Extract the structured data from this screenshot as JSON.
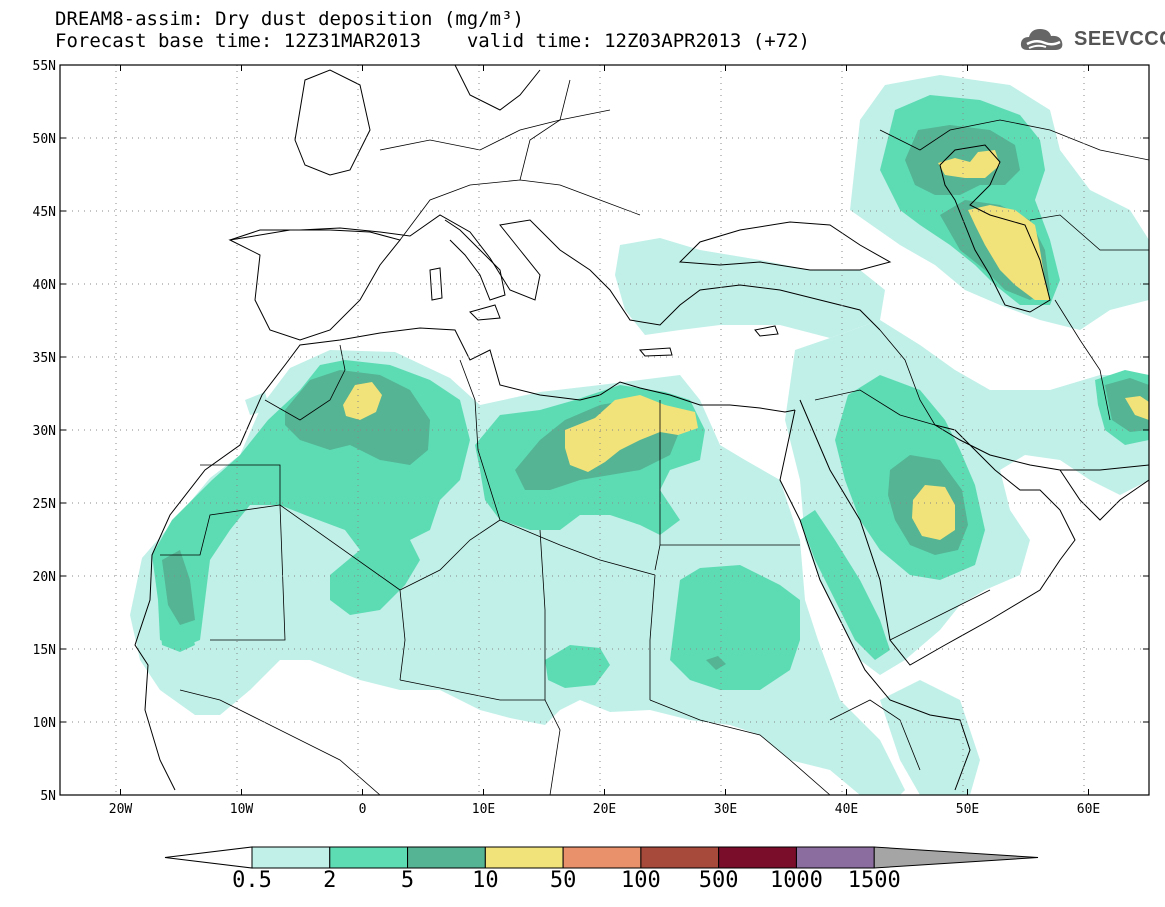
{
  "title": {
    "line1": "DREAM8-assim: Dry dust deposition (mg/m³)",
    "line2_base": "Forecast base time: 12Z31MAR2013",
    "line2_valid": "valid time: 12Z03APR2013 (+72)"
  },
  "logo": {
    "text": "SEEVCCC",
    "icon": "cloud-icon"
  },
  "map": {
    "lat_labels": [
      "55N",
      "50N",
      "45N",
      "40N",
      "35N",
      "30N",
      "25N",
      "20N",
      "15N",
      "10N",
      "5N"
    ],
    "lon_labels": [
      "20W",
      "10W",
      "0",
      "10E",
      "20E",
      "30E",
      "40E",
      "50E",
      "60E"
    ],
    "lat_range": [
      5,
      55
    ],
    "lon_range": [
      -25,
      65
    ],
    "grid": "dotted"
  },
  "legend": {
    "levels": [
      "0.5",
      "2",
      "5",
      "10",
      "50",
      "100",
      "500",
      "1000",
      "1500"
    ],
    "colors": [
      "#c1f0e8",
      "#5ddcb4",
      "#54b493",
      "#f2e27a",
      "#e9916a",
      "#a74a3c",
      "#7a0d2a",
      "#8c6da0",
      "#a5a5a5"
    ],
    "under_color": "#ffffff"
  }
}
